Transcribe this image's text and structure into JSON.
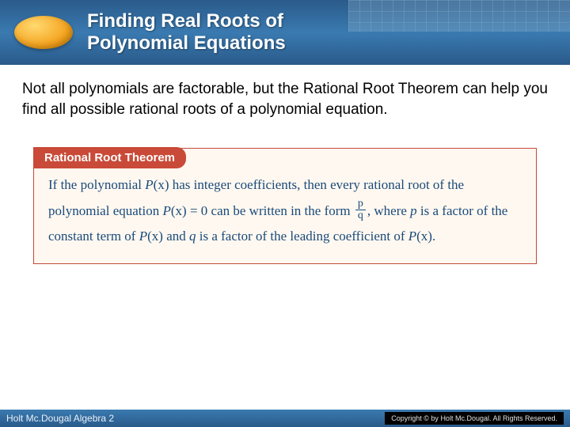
{
  "header": {
    "title_line1": "Finding Real Roots of",
    "title_line2": "Polynomial Equations",
    "bg_gradient_top": "#2a5a8a",
    "bg_gradient_mid": "#3a7ab0",
    "oval_color": "#f5a623"
  },
  "intro": {
    "text": "Not all polynomials are factorable, but the Rational Root Theorem can help you find all possible rational roots of a polynomial equation."
  },
  "theorem": {
    "tab_label": "Rational Root Theorem",
    "tab_bg": "#c94a38",
    "box_border": "#c44a3a",
    "box_bg": "#fff8f0",
    "text_color": "#1a4a7a",
    "seg1": "If the polynomial ",
    "px1": "P",
    "px1b": "(x)",
    "seg2": " has integer coefficients, then every rational root of the polynomial equation ",
    "px2": "P",
    "px2b": "(x) = 0",
    "seg3": " can be written in the form ",
    "frac_num": "p",
    "frac_den": "q",
    "seg4": ", where ",
    "p_var": "p",
    "seg5": " is a factor of the constant term of ",
    "px3": "P",
    "px3b": "(x)",
    "seg6": " and ",
    "q_var": "q",
    "seg7": " is a factor of the leading coefficient of ",
    "px4": "P",
    "px4b": "(x)",
    "seg8": "."
  },
  "footer": {
    "left": "Holt Mc.Dougal Algebra 2",
    "right": "Copyright © by Holt Mc.Dougal. All Rights Reserved."
  }
}
